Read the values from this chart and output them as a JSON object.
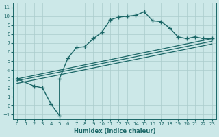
{
  "xlabel": "Humidex (Indice chaleur)",
  "bg_color": "#cce8e8",
  "grid_color": "#aacccc",
  "line_color": "#1a6666",
  "xlim": [
    -0.5,
    23.5
  ],
  "ylim": [
    -1.5,
    11.5
  ],
  "xticks": [
    0,
    1,
    2,
    3,
    4,
    5,
    6,
    7,
    8,
    9,
    10,
    11,
    12,
    13,
    14,
    15,
    16,
    17,
    18,
    19,
    20,
    21,
    22,
    23
  ],
  "yticks": [
    -1,
    0,
    1,
    2,
    3,
    4,
    5,
    6,
    7,
    8,
    9,
    10,
    11
  ],
  "line1_x": [
    0,
    2,
    3,
    4,
    5,
    5,
    6,
    7,
    8,
    9,
    10,
    11,
    12,
    13,
    14,
    15,
    16,
    17,
    18,
    19,
    20,
    21,
    22,
    23
  ],
  "line1_y": [
    3.0,
    2.2,
    2.0,
    0.2,
    -1.1,
    3.0,
    5.3,
    6.5,
    6.6,
    7.5,
    8.2,
    9.6,
    9.9,
    10.0,
    10.1,
    10.5,
    9.5,
    9.4,
    8.7,
    7.7,
    7.5,
    7.7,
    7.5,
    7.5
  ],
  "line2_x": [
    0,
    23
  ],
  "line2_y": [
    3.0,
    7.5
  ],
  "line3_x": [
    0,
    23
  ],
  "line3_y": [
    2.8,
    7.2
  ],
  "line4_x": [
    0,
    23
  ],
  "line4_y": [
    2.5,
    6.9
  ]
}
